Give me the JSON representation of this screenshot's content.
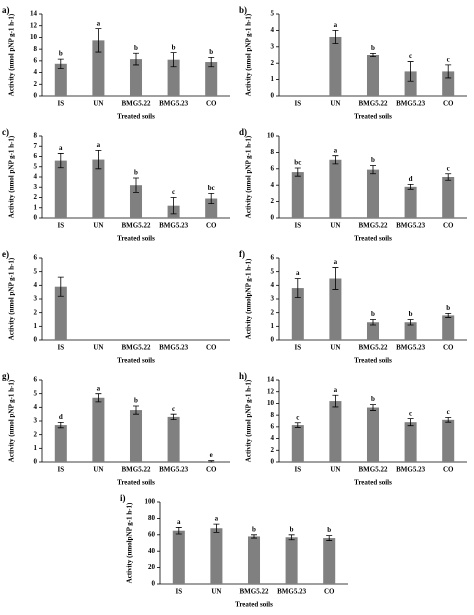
{
  "chart_data": [
    {
      "type": "bar",
      "panel": "a)",
      "ylabel": "Activity (nmol pNP g-1 h-1)",
      "xlabel": "Treated soils",
      "color": "#808080",
      "categories": [
        "IS",
        "UN",
        "BMG5.22",
        "BMG5.23",
        "CO"
      ],
      "values": [
        5.5,
        9.5,
        6.3,
        6.2,
        5.8
      ],
      "errors": [
        0.8,
        2,
        1,
        1.2,
        0.8
      ],
      "letters": [
        "b",
        "a",
        "b",
        "b",
        "b"
      ],
      "ylim": [
        0,
        14
      ],
      "yticks": [
        0,
        2,
        4,
        6,
        8,
        10,
        12,
        14
      ]
    },
    {
      "type": "bar",
      "panel": "b)",
      "ylabel": "Activity (nmol pNP g-1 h-1)",
      "xlabel": "Treated soils",
      "color": "#808080",
      "categories": [
        "IS",
        "UN",
        "BMG5.22",
        "BMG5.23",
        "CO"
      ],
      "values": [
        null,
        3.6,
        2.5,
        1.5,
        1.5
      ],
      "errors": [
        null,
        0.4,
        0.1,
        0.6,
        0.4
      ],
      "letters": [
        null,
        "a",
        "b",
        "c",
        "c"
      ],
      "ylim": [
        0,
        5
      ],
      "yticks": [
        0,
        1,
        2,
        3,
        4,
        5
      ]
    },
    {
      "type": "bar",
      "panel": "c)",
      "ylabel": "Activity (nmol pNP g-1 h-1)",
      "xlabel": "Treated soils",
      "color": "#808080",
      "categories": [
        "IS",
        "UN",
        "BMG5.22",
        "BMG5.23",
        "CO"
      ],
      "values": [
        5.6,
        5.7,
        3.2,
        1.2,
        1.9
      ],
      "errors": [
        0.7,
        0.9,
        0.7,
        0.8,
        0.5
      ],
      "letters": [
        "a",
        "a",
        "b",
        "c",
        "bc"
      ],
      "ylim": [
        0,
        8
      ],
      "yticks": [
        0,
        1,
        2,
        3,
        4,
        5,
        6,
        7,
        8
      ]
    },
    {
      "type": "bar",
      "panel": "d)",
      "ylabel": "Activity (nmol pNP g-1 h-1)",
      "xlabel": "Treated soils",
      "color": "#808080",
      "categories": [
        "IS",
        "UN",
        "BMG5.22",
        "BMG5.23",
        "CO"
      ],
      "values": [
        5.6,
        7.1,
        5.9,
        3.8,
        5.0
      ],
      "errors": [
        0.5,
        0.5,
        0.5,
        0.3,
        0.4
      ],
      "letters": [
        "bc",
        "a",
        "b",
        "d",
        "c"
      ],
      "ylim": [
        0,
        10
      ],
      "yticks": [
        0,
        2,
        4,
        6,
        8,
        10
      ]
    },
    {
      "type": "bar",
      "panel": "e)",
      "ylabel": "Activity (nmol pNP g-1 h-1)",
      "xlabel": "Treated soils",
      "color": "#808080",
      "categories": [
        "IS",
        "UN",
        "BMG5.22",
        "BMG5.23",
        "CO"
      ],
      "values": [
        3.9,
        null,
        null,
        null,
        null
      ],
      "errors": [
        0.7,
        null,
        null,
        null,
        null
      ],
      "ylim": [
        0,
        6
      ],
      "yticks": [
        0,
        1,
        2,
        3,
        4,
        5,
        6
      ]
    },
    {
      "type": "bar",
      "panel": "f)",
      "ylabel": "Activity (nmolpNP g-1 h-1)",
      "xlabel": "Treated soils",
      "color": "#808080",
      "categories": [
        "IS",
        "UN",
        "BMG5.22",
        "BMG5.23",
        "CO"
      ],
      "values": [
        3.8,
        4.5,
        1.3,
        1.3,
        1.8
      ],
      "errors": [
        0.7,
        0.8,
        0.2,
        0.2,
        0.15
      ],
      "letters": [
        "a",
        "a",
        "b",
        "b",
        "b"
      ],
      "ylim": [
        0,
        6
      ],
      "yticks": [
        0,
        1,
        2,
        3,
        4,
        5,
        6
      ]
    },
    {
      "type": "bar",
      "panel": "g)",
      "ylabel": "Activity (nmol pNP g-1 h-1)",
      "xlabel": "Treated soils",
      "color": "#808080",
      "categories": [
        "IS",
        "UN",
        "BMG5.22",
        "BMG5.23",
        "CO"
      ],
      "values": [
        2.7,
        4.7,
        3.8,
        3.3,
        0.05
      ],
      "errors": [
        0.2,
        0.3,
        0.3,
        0.2,
        0.05
      ],
      "letters": [
        "d",
        "a",
        "b",
        "c",
        "e"
      ],
      "ylim": [
        0,
        6
      ],
      "yticks": [
        0,
        1,
        2,
        3,
        4,
        5,
        6
      ]
    },
    {
      "type": "bar",
      "panel": "h)",
      "ylabel": "Activity (nmol pNP g-1 h-1)",
      "xlabel": "Treated soils",
      "color": "#808080",
      "categories": [
        "IS",
        "UN",
        "BMG5.22",
        "BMG5.23",
        "CO"
      ],
      "values": [
        6.3,
        10.4,
        9.3,
        6.8,
        7.2
      ],
      "errors": [
        0.4,
        1,
        0.5,
        0.6,
        0.4
      ],
      "letters": [
        "c",
        "a",
        "b",
        "c",
        "c"
      ],
      "ylim": [
        0,
        14
      ],
      "yticks": [
        0,
        2,
        4,
        6,
        8,
        10,
        12,
        14
      ]
    },
    {
      "type": "bar",
      "panel": "i)",
      "ylabel": "Activity (nmolpNP g-1 h-1)",
      "xlabel": "Treated soils",
      "color": "#808080",
      "categories": [
        "IS",
        "UN",
        "BMG5.22",
        "BMG5.23",
        "CO"
      ],
      "values": [
        65,
        68,
        58,
        57,
        56
      ],
      "errors": [
        4,
        5,
        2,
        3,
        3
      ],
      "letters": [
        "a",
        "a",
        "b",
        "b",
        "b"
      ],
      "ylim": [
        0,
        100
      ],
      "yticks": [
        0,
        20,
        40,
        60,
        80,
        100
      ]
    }
  ]
}
